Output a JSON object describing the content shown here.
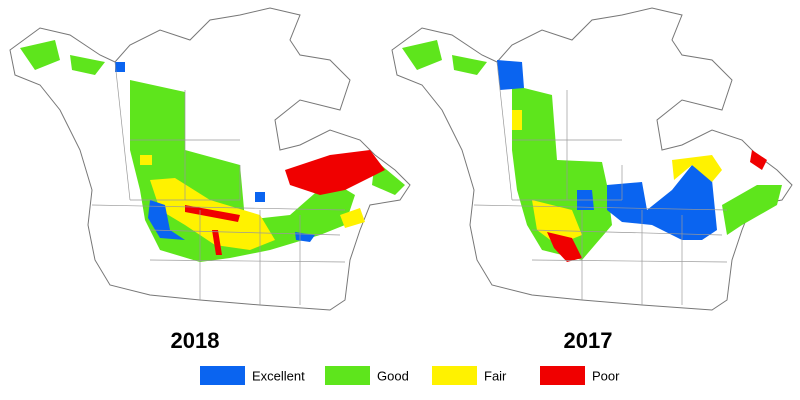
{
  "maps": [
    {
      "label": "2018"
    },
    {
      "label": "2017"
    }
  ],
  "legend": [
    {
      "label": "Excellent",
      "color": "#0a64f0"
    },
    {
      "label": "Good",
      "color": "#5ee51c"
    },
    {
      "label": "Fair",
      "color": "#fff200"
    },
    {
      "label": "Poor",
      "color": "#f00000"
    }
  ]
}
